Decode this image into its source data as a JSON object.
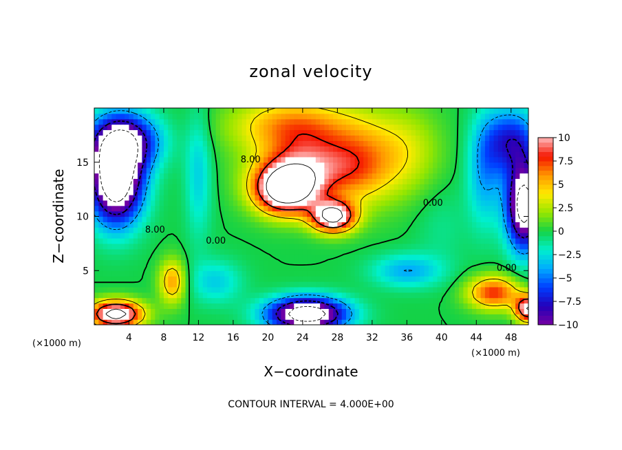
{
  "chart_data": {
    "type": "heatmap",
    "title": "zonal velocity",
    "xlabel": "X−coordinate",
    "ylabel": "Z−coordinate",
    "x_unit": "(×1000 m)",
    "x_unit_right": "(×1000 m)",
    "xlim": [
      0,
      50
    ],
    "ylim": [
      0,
      20
    ],
    "x_ticks": [
      "4",
      "8",
      "12",
      "16",
      "20",
      "24",
      "28",
      "32",
      "36",
      "40",
      "44",
      "48"
    ],
    "x_tick_values": [
      4,
      8,
      12,
      16,
      20,
      24,
      28,
      32,
      36,
      40,
      44,
      48
    ],
    "y_ticks": [
      "5",
      "10",
      "15"
    ],
    "y_tick_values": [
      5,
      10,
      15
    ],
    "colorbar": {
      "min": -10,
      "max": 10,
      "ticks": [
        "10",
        "7.5",
        "5",
        "2.5",
        "0",
        "−2.5",
        "−5",
        "−7.5",
        "−10"
      ],
      "tick_values": [
        10,
        7.5,
        5,
        2.5,
        0,
        -2.5,
        -5,
        -7.5,
        -10
      ]
    },
    "contour_labels": [
      {
        "text": "8.00",
        "x": 18,
        "z": 15
      },
      {
        "text": "8.00",
        "x": 7,
        "z": 8.5
      },
      {
        "text": "0.00",
        "x": 14,
        "z": 7.5
      },
      {
        "text": "0.00",
        "x": 39,
        "z": 11
      },
      {
        "text": "0.00",
        "x": 47.5,
        "z": 5
      }
    ],
    "footer": "CONTOUR INTERVAL = 4.000E+00",
    "features": [
      {
        "x": 22,
        "z": 12.5,
        "value": 14,
        "sx": 3.5,
        "sz": 2.2
      },
      {
        "x": 27.5,
        "z": 10,
        "value": 13,
        "sx": 2.5,
        "sz": 1.4
      },
      {
        "x": 25,
        "z": 14.5,
        "value": 8,
        "sx": 6,
        "sz": 3
      },
      {
        "x": 23,
        "z": 18.5,
        "value": 6,
        "sx": 7,
        "sz": 2.5
      },
      {
        "x": 31,
        "z": 15,
        "value": 4,
        "sx": 4,
        "sz": 4
      },
      {
        "x": 2.5,
        "z": 13.5,
        "value": -16,
        "sx": 3,
        "sz": 4
      },
      {
        "x": 3.5,
        "z": 17,
        "value": -9,
        "sx": 4,
        "sz": 2.5
      },
      {
        "x": 49.5,
        "z": 11,
        "value": -14,
        "sx": 2,
        "sz": 4
      },
      {
        "x": 48,
        "z": 17,
        "value": -7,
        "sx": 3,
        "sz": 3
      },
      {
        "x": 24.5,
        "z": 1,
        "value": -15,
        "sx": 4.5,
        "sz": 1.5
      },
      {
        "x": 2.5,
        "z": 1,
        "value": 14,
        "sx": 3,
        "sz": 1.2
      },
      {
        "x": 9,
        "z": 4,
        "value": 6,
        "sx": 1.5,
        "sz": 2
      },
      {
        "x": 46,
        "z": 3,
        "value": 8,
        "sx": 3,
        "sz": 1.5
      },
      {
        "x": 50,
        "z": 1.5,
        "value": 12,
        "sx": 1.5,
        "sz": 1.2
      },
      {
        "x": 12,
        "z": 14,
        "value": -3,
        "sx": 1.5,
        "sz": 6
      },
      {
        "x": 36,
        "z": 5,
        "value": -4,
        "sx": 4,
        "sz": 1.5
      },
      {
        "x": 40,
        "z": 9,
        "value": -1,
        "sx": 3,
        "sz": 4
      },
      {
        "x": 14,
        "z": 4,
        "value": -3,
        "sx": 3,
        "sz": 2
      },
      {
        "x": 45,
        "z": 14,
        "value": -4,
        "sx": 2,
        "sz": 5
      },
      {
        "x": 36,
        "z": 16,
        "value": 3,
        "sx": 4,
        "sz": 4
      }
    ]
  }
}
